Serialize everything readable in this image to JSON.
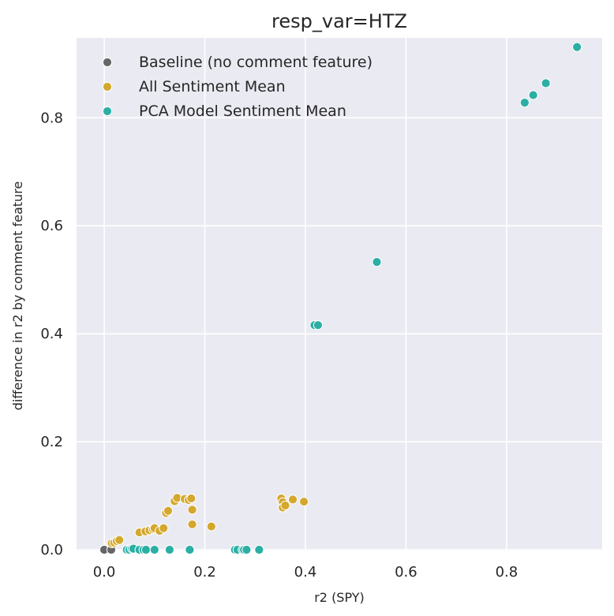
{
  "chart_data": {
    "type": "scatter",
    "title": "resp_var=HTZ",
    "xlabel": "r2 (SPY)",
    "ylabel": "difference in r2 by comment feature",
    "xlim": [
      -0.055,
      0.99
    ],
    "ylim": [
      -0.0015,
      0.948
    ],
    "xticks": [
      0.0,
      0.2,
      0.4,
      0.6,
      0.8
    ],
    "xtick_labels": [
      "0.0",
      "0.2",
      "0.4",
      "0.6",
      "0.8"
    ],
    "yticks": [
      0.0,
      0.2,
      0.4,
      0.6,
      0.8
    ],
    "ytick_labels": [
      "0.0",
      "0.2",
      "0.4",
      "0.6",
      "0.8"
    ],
    "grid": true,
    "legend_position": "top-left",
    "background_color": "#eaeaf2",
    "series": [
      {
        "name": "Baseline (no comment feature)",
        "color": "#666666",
        "points": [
          [
            0.0,
            0.0
          ],
          [
            0.014,
            0.0
          ]
        ]
      },
      {
        "name": "All Sentiment Mean",
        "color": "#d4a82d",
        "points": [
          [
            0.015,
            0.012
          ],
          [
            0.02,
            0.013
          ],
          [
            0.025,
            0.016
          ],
          [
            0.03,
            0.018
          ],
          [
            0.07,
            0.032
          ],
          [
            0.082,
            0.034
          ],
          [
            0.09,
            0.036
          ],
          [
            0.097,
            0.038
          ],
          [
            0.1,
            0.04
          ],
          [
            0.11,
            0.035
          ],
          [
            0.118,
            0.04
          ],
          [
            0.123,
            0.068
          ],
          [
            0.127,
            0.072
          ],
          [
            0.14,
            0.09
          ],
          [
            0.145,
            0.096
          ],
          [
            0.16,
            0.094
          ],
          [
            0.168,
            0.092
          ],
          [
            0.173,
            0.095
          ],
          [
            0.175,
            0.074
          ],
          [
            0.175,
            0.047
          ],
          [
            0.213,
            0.043
          ],
          [
            0.352,
            0.095
          ],
          [
            0.355,
            0.088
          ],
          [
            0.355,
            0.078
          ],
          [
            0.36,
            0.082
          ],
          [
            0.375,
            0.093
          ],
          [
            0.397,
            0.089
          ]
        ]
      },
      {
        "name": "PCA Model Sentiment Mean",
        "color": "#2bafa5",
        "points": [
          [
            0.045,
            0.0
          ],
          [
            0.05,
            0.0
          ],
          [
            0.055,
            0.002
          ],
          [
            0.058,
            0.002
          ],
          [
            0.07,
            0.0
          ],
          [
            0.078,
            0.0
          ],
          [
            0.083,
            0.0
          ],
          [
            0.1,
            0.0
          ],
          [
            0.13,
            0.0
          ],
          [
            0.17,
            0.0
          ],
          [
            0.26,
            0.0
          ],
          [
            0.265,
            0.0
          ],
          [
            0.275,
            0.0
          ],
          [
            0.278,
            0.0
          ],
          [
            0.283,
            0.0
          ],
          [
            0.308,
            0.0
          ],
          [
            0.418,
            0.416
          ],
          [
            0.425,
            0.416
          ],
          [
            0.542,
            0.533
          ],
          [
            0.836,
            0.828
          ],
          [
            0.853,
            0.842
          ],
          [
            0.878,
            0.864
          ],
          [
            0.94,
            0.931
          ]
        ]
      }
    ]
  }
}
